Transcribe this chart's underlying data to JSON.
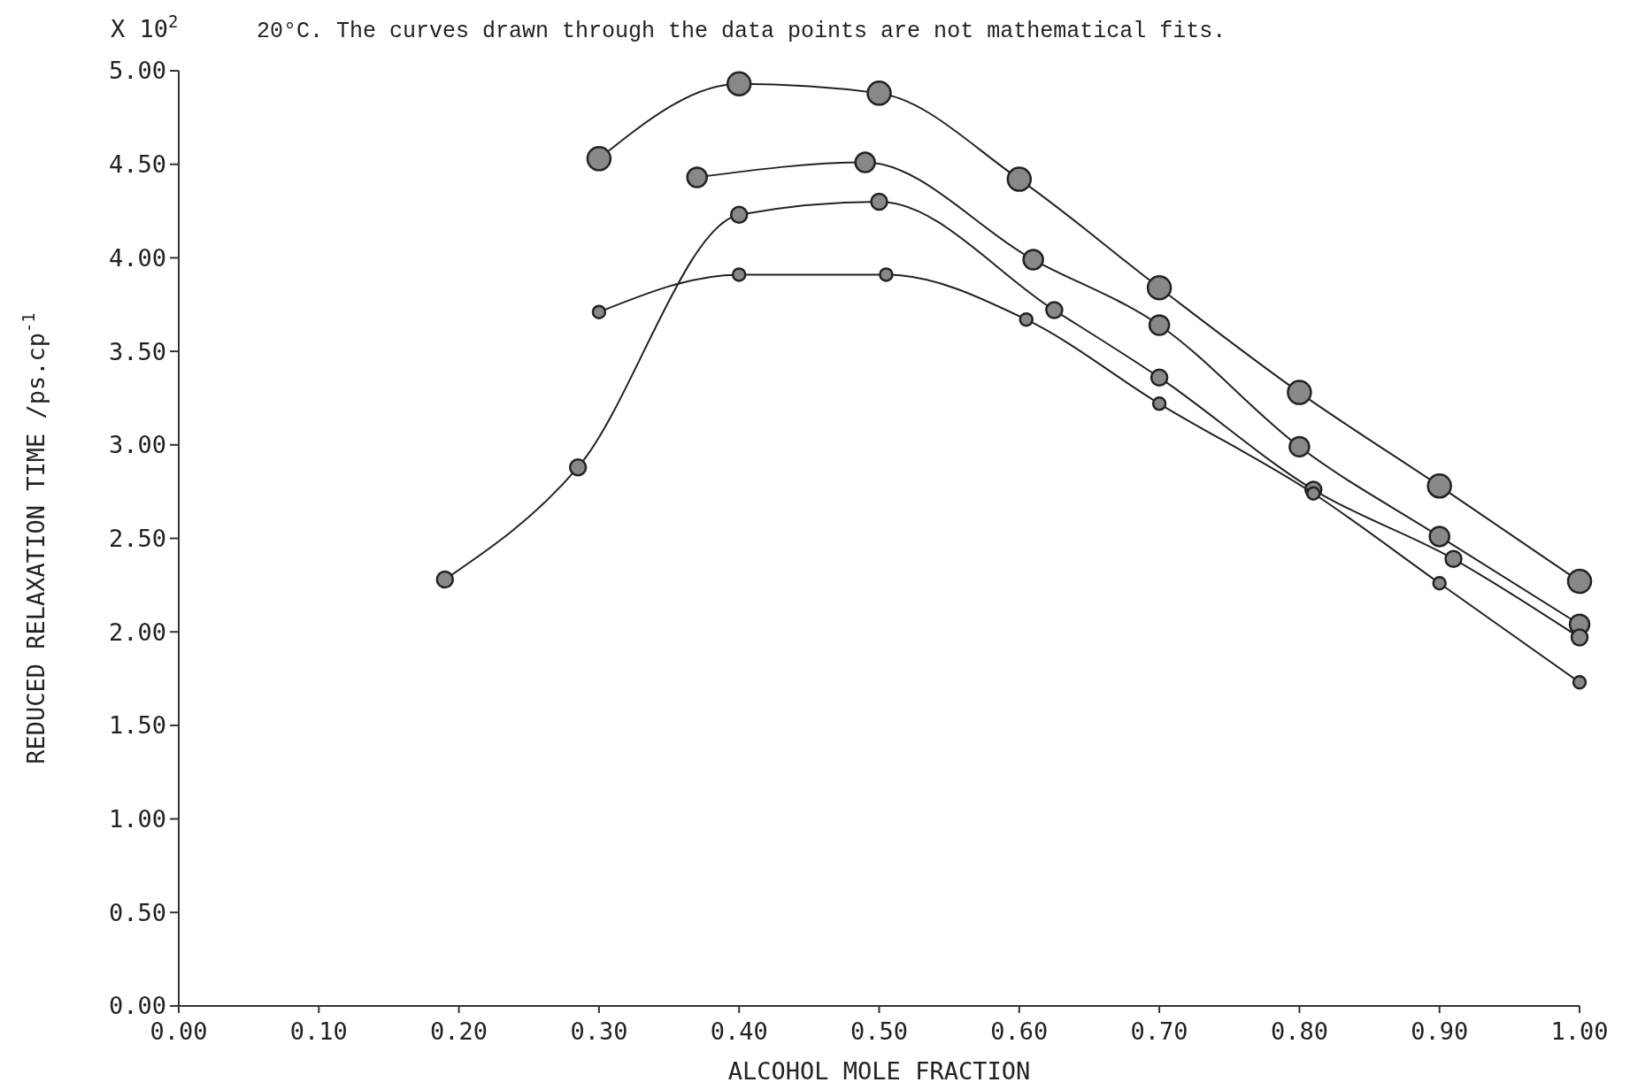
{
  "chart_data": {
    "type": "line",
    "xlabel": "ALCOHOL MOLE FRACTION",
    "ylabel": "REDUCED RELAXATION TIME /ps.cp$^{-1}$",
    "annotations": [
      "X 10$^{2}$",
      "20°C. The curves drawn through the data points are not mathematical fits."
    ],
    "marker": "circle",
    "line_style": "solid",
    "xlim": [
      0,
      1
    ],
    "ylim": [
      0,
      5
    ],
    "xticks": [
      {
        "value": 0,
        "label": "0.00"
      },
      {
        "value": 0.1,
        "label": "0.10"
      },
      {
        "value": 0.2,
        "label": "0.20"
      },
      {
        "value": 0.3,
        "label": "0.30"
      },
      {
        "value": 0.4,
        "label": "0.40"
      },
      {
        "value": 0.5,
        "label": "0.50"
      },
      {
        "value": 0.6,
        "label": "0.60"
      },
      {
        "value": 0.7,
        "label": "0.70"
      },
      {
        "value": 0.8,
        "label": "0.80"
      },
      {
        "value": 0.9,
        "label": "0.90"
      },
      {
        "value": 1,
        "label": "1.00"
      }
    ],
    "yticks": [
      {
        "value": 0,
        "label": "0.00"
      },
      {
        "value": 0.5,
        "label": "0.50"
      },
      {
        "value": 1,
        "label": "1.00"
      },
      {
        "value": 1.5,
        "label": "1.50"
      },
      {
        "value": 2,
        "label": "2.00"
      },
      {
        "value": 2.5,
        "label": "2.50"
      },
      {
        "value": 3,
        "label": "3.00"
      },
      {
        "value": 3.5,
        "label": "3.50"
      },
      {
        "value": 4,
        "label": "4.00"
      },
      {
        "value": 4.5,
        "label": "4.50"
      },
      {
        "value": 5,
        "label": "5.00"
      }
    ],
    "series": [
      {
        "color": "#222222",
        "x": [
          0.3,
          0.4,
          0.5,
          0.6,
          0.7,
          0.8,
          0.9,
          1.0
        ],
        "values": [
          4.53,
          4.93,
          4.88,
          4.42,
          3.84,
          3.28,
          2.78,
          2.27
        ]
      },
      {
        "color": "#222222",
        "x": [
          0.37,
          0.49,
          0.61,
          0.7,
          0.8,
          0.9,
          1.0
        ],
        "values": [
          4.43,
          4.51,
          3.99,
          3.64,
          2.99,
          2.51,
          2.04
        ]
      },
      {
        "color": "#222222",
        "x": [
          0.19,
          0.285,
          0.4,
          0.5,
          0.625,
          0.7,
          0.81,
          0.91,
          1.0
        ],
        "values": [
          2.28,
          2.88,
          4.23,
          4.3,
          3.72,
          3.36,
          2.76,
          2.39,
          1.97
        ]
      },
      {
        "color": "#222222",
        "x": [
          0.3,
          0.4,
          0.505,
          0.605,
          0.7,
          0.81,
          0.9,
          1.0
        ],
        "values": [
          3.71,
          3.91,
          3.91,
          3.67,
          3.22,
          2.74,
          2.26,
          1.73
        ]
      }
    ]
  }
}
